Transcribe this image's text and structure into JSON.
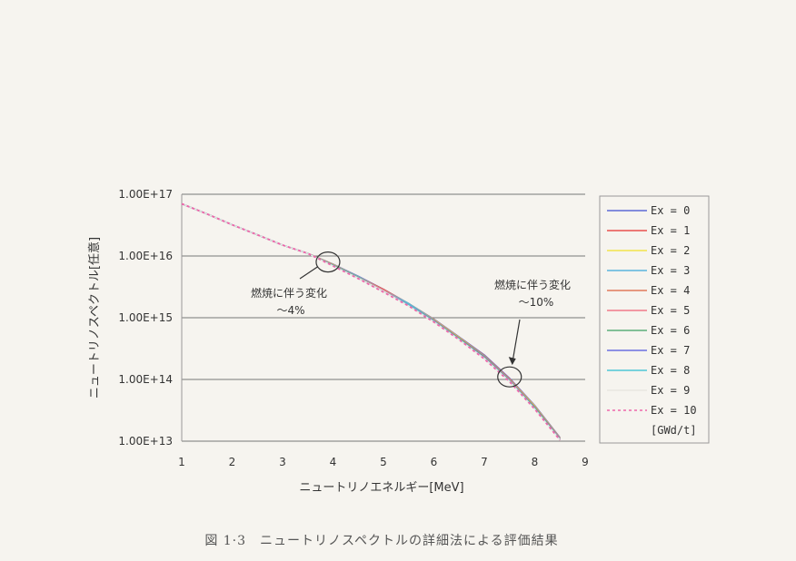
{
  "chart_data": {
    "type": "line",
    "title": "",
    "xlabel": "ニュートリノエネルギー[MeV]",
    "ylabel": "ニュートリノスペクトル[任意]",
    "x_ticks": [
      "1",
      "2",
      "3",
      "4",
      "5",
      "6",
      "7",
      "8",
      "9"
    ],
    "y_ticks": [
      "1.00E+17",
      "1.00E+16",
      "1.00E+15",
      "1.00E+14",
      "1.00E+13"
    ],
    "xlim": [
      1,
      9
    ],
    "ylim": [
      10000000000000.0,
      1e+17
    ],
    "y_scale": "log",
    "grid": "horizontal",
    "legend_position": "right",
    "x": [
      1.0,
      1.5,
      2.0,
      2.5,
      3.0,
      3.5,
      4.0,
      4.5,
      5.0,
      5.5,
      6.0,
      6.5,
      7.0,
      7.5,
      8.0,
      8.5
    ],
    "series": [
      {
        "name": "Ex = 0",
        "color": "#5b6ad6",
        "dashed": false,
        "values": [
          7e+16,
          4.8e+16,
          3.2e+16,
          2.2e+16,
          1.5e+16,
          1.1e+16,
          7400000000000000.0,
          4700000000000000.0,
          2900000000000000.0,
          1700000000000000.0,
          950000000000000.0,
          490000000000000.0,
          250000000000000.0,
          105000000000000.0,
          38000000000000.0,
          11500000000000.0
        ]
      },
      {
        "name": "Ex = 1",
        "color": "#e8504e",
        "dashed": false,
        "values": [
          7e+16,
          4.8e+16,
          3.2e+16,
          2.2e+16,
          1.5e+16,
          1.1e+16,
          7300000000000000.0,
          4600000000000000.0,
          2900000000000000.0,
          1700000000000000.0,
          940000000000000.0,
          480000000000000.0,
          245000000000000.0,
          102000000000000.0,
          37000000000000.0,
          11300000000000.0
        ]
      },
      {
        "name": "Ex = 2",
        "color": "#f2e34a",
        "dashed": false,
        "values": [
          7e+16,
          4.8e+16,
          3.2e+16,
          2.2e+16,
          1.5e+16,
          1.1e+16,
          7300000000000000.0,
          4600000000000000.0,
          2800000000000000.0,
          1700000000000000.0,
          930000000000000.0,
          480000000000000.0,
          240000000000000.0,
          100000000000000.0,
          37000000000000.0,
          11200000000000.0
        ]
      },
      {
        "name": "Ex = 3",
        "color": "#5ab4de",
        "dashed": false,
        "values": [
          7e+16,
          4.8e+16,
          3.2e+16,
          2.2e+16,
          1.5e+16,
          1.1e+16,
          7200000000000000.0,
          4600000000000000.0,
          2800000000000000.0,
          1700000000000000.0,
          920000000000000.0,
          470000000000000.0,
          240000000000000.0,
          99000000000000.0,
          36000000000000.0,
          11100000000000.0
        ]
      },
      {
        "name": "Ex = 4",
        "color": "#e07a5c",
        "dashed": false,
        "values": [
          7e+16,
          4.8e+16,
          3.2e+16,
          2.2e+16,
          1.5e+16,
          1.1e+16,
          7200000000000000.0,
          4500000000000000.0,
          2800000000000000.0,
          1600000000000000.0,
          910000000000000.0,
          470000000000000.0,
          235000000000000.0,
          98000000000000.0,
          36000000000000.0,
          11000000000000.0
        ]
      },
      {
        "name": "Ex = 5",
        "color": "#f07a8a",
        "dashed": false,
        "values": [
          7e+16,
          4.8e+16,
          3.2e+16,
          2.2e+16,
          1.5e+16,
          1.1e+16,
          7100000000000000.0,
          4500000000000000.0,
          2800000000000000.0,
          1600000000000000.0,
          900000000000000.0,
          460000000000000.0,
          230000000000000.0,
          97000000000000.0,
          35000000000000.0,
          10900000000000.0
        ]
      },
      {
        "name": "Ex = 6",
        "color": "#5cae7a",
        "dashed": false,
        "values": [
          7e+16,
          4.8e+16,
          3.2e+16,
          2.2e+16,
          1.5e+16,
          1.1e+16,
          7100000000000000.0,
          4500000000000000.0,
          2700000000000000.0,
          1600000000000000.0,
          890000000000000.0,
          460000000000000.0,
          230000000000000.0,
          96000000000000.0,
          35000000000000.0,
          10800000000000.0
        ]
      },
      {
        "name": "Ex = 7",
        "color": "#6a6ee0",
        "dashed": false,
        "values": [
          7e+16,
          4.8e+16,
          3.2e+16,
          2.2e+16,
          1.5e+16,
          1.1e+16,
          7000000000000000.0,
          4400000000000000.0,
          2700000000000000.0,
          1600000000000000.0,
          880000000000000.0,
          450000000000000.0,
          225000000000000.0,
          95000000000000.0,
          34000000000000.0,
          10700000000000.0
        ]
      },
      {
        "name": "Ex = 8",
        "color": "#4fc6d6",
        "dashed": false,
        "values": [
          7e+16,
          4.8e+16,
          3.2e+16,
          2.2e+16,
          1.5e+16,
          1.1e+16,
          7000000000000000.0,
          4400000000000000.0,
          2700000000000000.0,
          1600000000000000.0,
          870000000000000.0,
          450000000000000.0,
          220000000000000.0,
          94000000000000.0,
          34000000000000.0,
          10600000000000.0
        ]
      },
      {
        "name": "Ex = 9",
        "color": "#e8e6e0",
        "dashed": false,
        "values": [
          7e+16,
          4.8e+16,
          3.2e+16,
          2.2e+16,
          1.5e+16,
          1.1e+16,
          6900000000000000.0,
          4400000000000000.0,
          2700000000000000.0,
          1550000000000000.0,
          860000000000000.0,
          440000000000000.0,
          220000000000000.0,
          93000000000000.0,
          33000000000000.0,
          10500000000000.0
        ]
      },
      {
        "name": "Ex = 10",
        "color": "#ee66aa",
        "dashed": true,
        "values": [
          7e+16,
          4.8e+16,
          3.2e+16,
          2.2e+16,
          1.5e+16,
          1.1e+16,
          6900000000000000.0,
          4300000000000000.0,
          2600000000000000.0,
          1550000000000000.0,
          850000000000000.0,
          440000000000000.0,
          215000000000000.0,
          92000000000000.0,
          33000000000000.0,
          10400000000000.0
        ]
      }
    ],
    "legend_unit": "[GWd/t]",
    "annotations": [
      {
        "line1": "燃焼に伴う変化",
        "line2": "～4%",
        "target_x": 3.9,
        "target_y": 8000000000000000.0
      },
      {
        "line1": "燃焼に伴う変化",
        "line2": "～10%",
        "target_x": 7.5,
        "target_y": 110000000000000.0
      }
    ]
  },
  "caption": "図 1·3　ニュートリノスペクトルの詳細法による評価結果"
}
